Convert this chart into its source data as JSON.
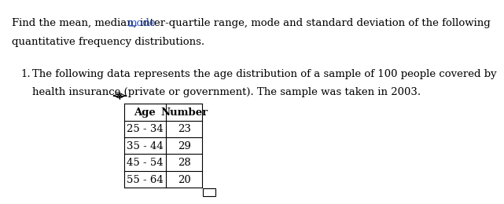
{
  "title_line1": "Find the mean, median, inter-quartile range, mode and standard deviation of the following",
  "title_line2": "quantitative frequency distributions.",
  "question_number": "1.",
  "question_text_line1": "The following data represents the age distribution of a sample of 100 people covered by",
  "question_text_line2": "health insurance (private or government). The sample was taken in 2003.",
  "table_headers": [
    "Age",
    "Number"
  ],
  "table_data": [
    [
      "25 - 34",
      "23"
    ],
    [
      "35 - 44",
      "29"
    ],
    [
      "45 - 54",
      "28"
    ],
    [
      "55 - 64",
      "20"
    ]
  ],
  "background_color": "#ffffff",
  "text_color": "#000000",
  "link_color": "#3355bb",
  "font_size_title": 9.5,
  "font_size_question": 9.5,
  "font_size_table": 9.5,
  "mode_prefix": "Find the mean, median, inter-quartile range, ",
  "mode_word": "mode",
  "mode_suffix": " and standard deviation of the following"
}
